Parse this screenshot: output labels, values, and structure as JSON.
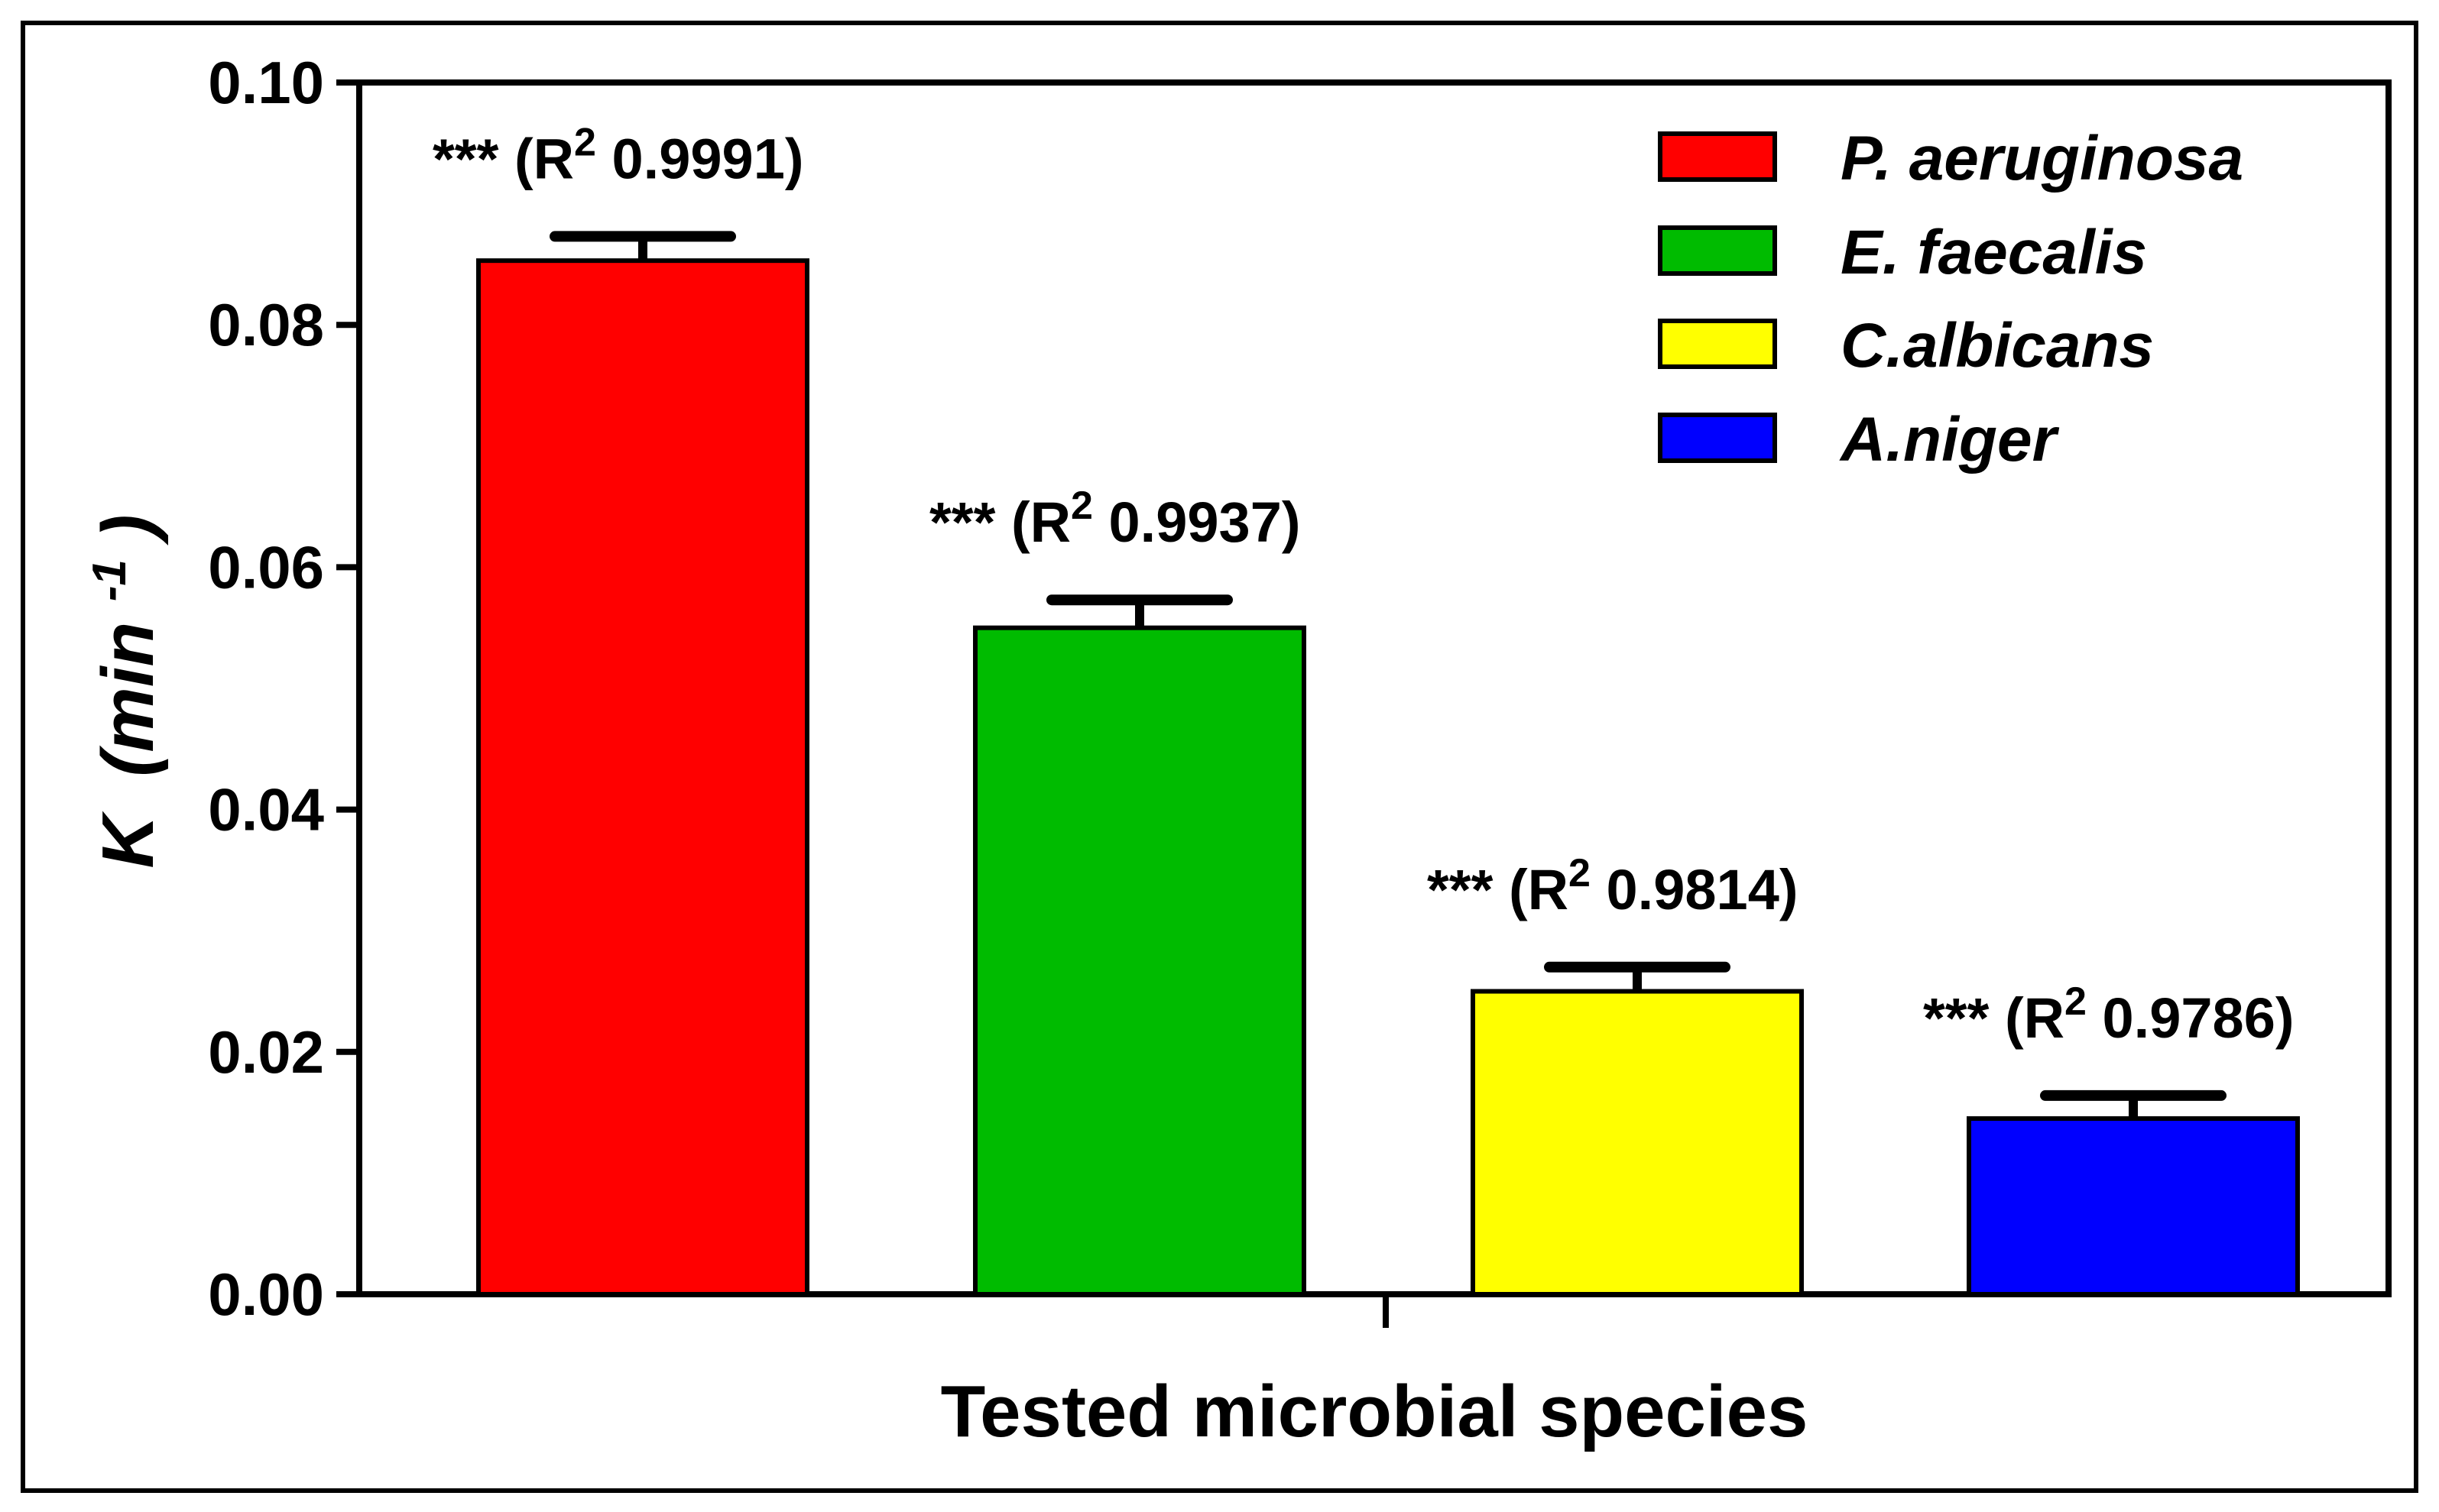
{
  "chart_data": {
    "type": "bar",
    "title": "",
    "xlabel": "Tested microbial species",
    "ylabel": {
      "symbol": "K",
      "unit_prefix": "(min",
      "unit_sup": "-1",
      "unit_suffix": ")"
    },
    "ylim": [
      0,
      0.1
    ],
    "yticks": [
      "0.00",
      "0.02",
      "0.04",
      "0.06",
      "0.08",
      "0.10"
    ],
    "categories": [
      "P. aeruginosa",
      "E. faecalis",
      "C.albicans",
      "A.niger"
    ],
    "values": [
      0.0853,
      0.055,
      0.025,
      0.0145
    ],
    "errors": [
      0.002,
      0.0023,
      0.002,
      0.0019
    ],
    "colors": [
      "#ff0000",
      "#00bb00",
      "#ffff00",
      "#0000ff"
    ],
    "annotations": [
      {
        "stars": "***",
        "open": "(R",
        "sup": "2",
        "value": "0.9991)"
      },
      {
        "stars": "***",
        "open": "(R",
        "sup": "2",
        "value": "0.9937)"
      },
      {
        "stars": "***",
        "open": "(R",
        "sup": "2",
        "value": "0.9814)"
      },
      {
        "stars": "***",
        "open": "(R",
        "sup": "2",
        "value": "0.9786)"
      }
    ],
    "legend": {
      "position": "top-right",
      "entries": [
        "P. aeruginosa",
        "E. faecalis",
        "C.albicans",
        "A.niger"
      ]
    }
  }
}
